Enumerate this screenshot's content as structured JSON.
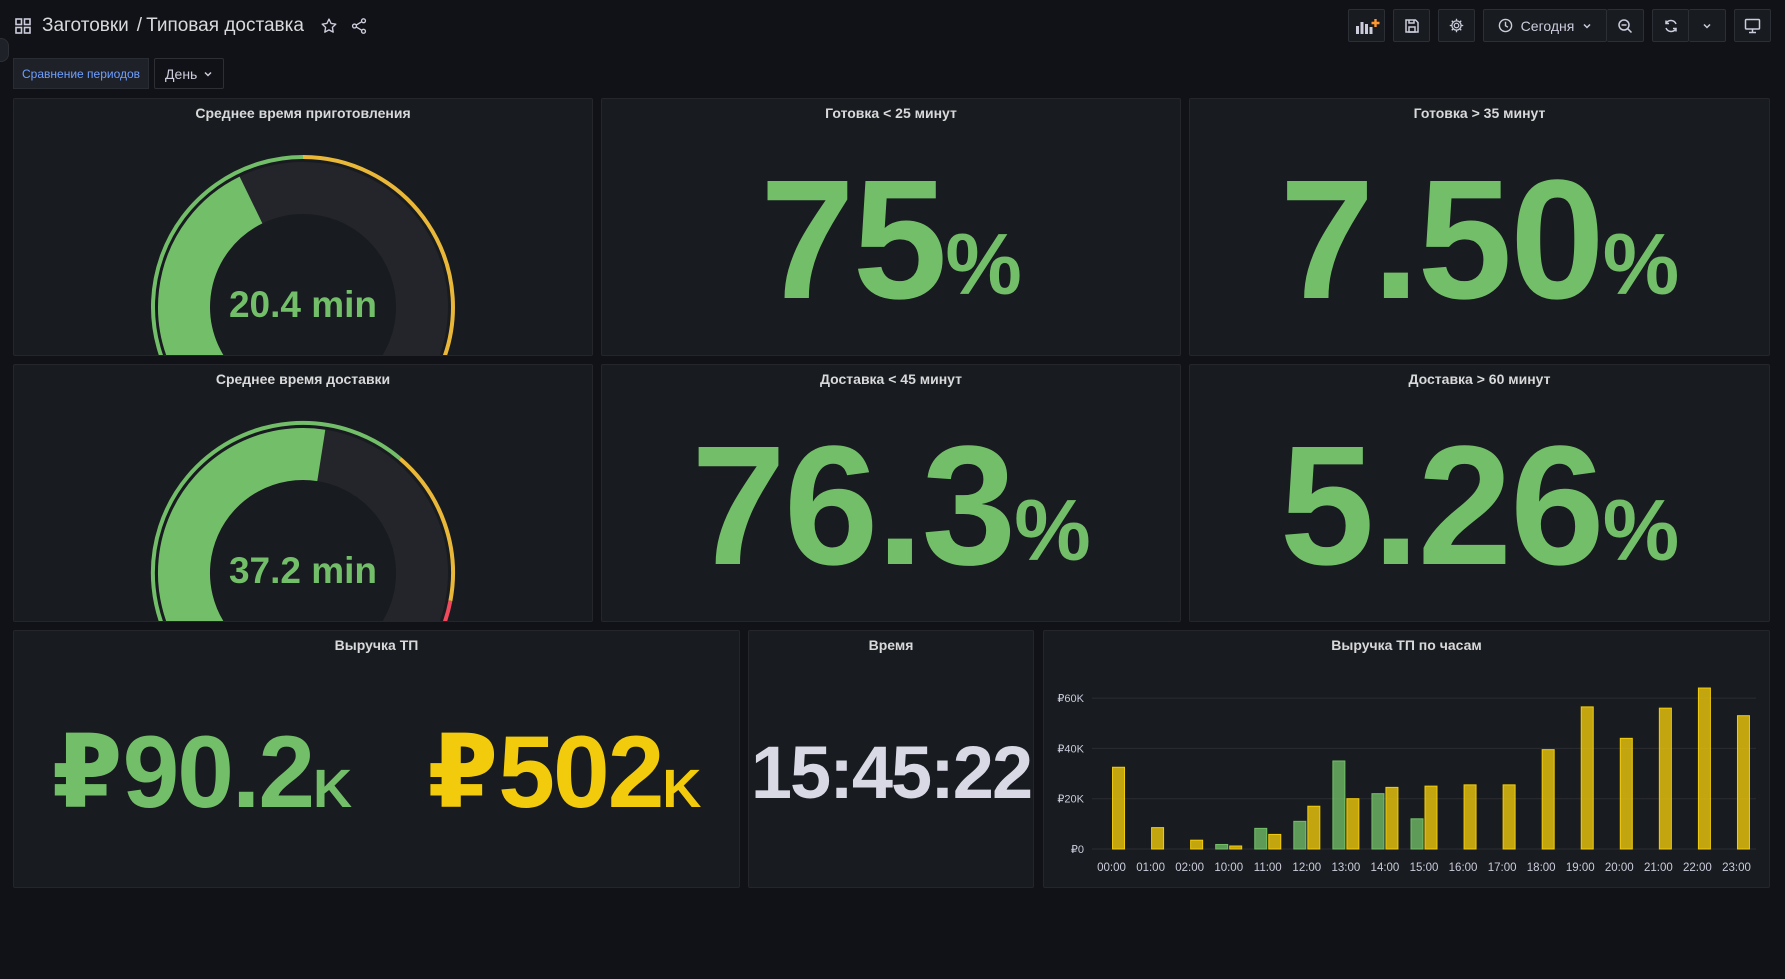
{
  "breadcrumb": {
    "folder": "Заготовки",
    "separator": "/",
    "dashboard": "Типовая доставка"
  },
  "toolbar": {
    "time_range": "Сегодня"
  },
  "variables": {
    "label": "Сравнение периодов",
    "value": "День"
  },
  "panels": {
    "prep_time": {
      "title": "Среднее время приготовления",
      "value": "20.4 min",
      "level": 20.4,
      "min": 0,
      "max": 50,
      "yellow_from": 25,
      "red_from": 45
    },
    "ready_lt25": {
      "title": "Готовка < 25 минут",
      "value": "75",
      "unit": "%"
    },
    "ready_gt35": {
      "title": "Готовка > 35 минут",
      "value": "7.50",
      "unit": "%"
    },
    "delivery_time": {
      "title": "Среднее время доставки",
      "value": "37.2 min",
      "level": 37.2,
      "min": 0,
      "max": 70,
      "yellow_from": 45,
      "red_from": 60
    },
    "delivery_lt45": {
      "title": "Доставка < 45 минут",
      "value": "76.3",
      "unit": "%"
    },
    "delivery_gt60": {
      "title": "Доставка > 60 минут",
      "value": "5.26",
      "unit": "%"
    },
    "revenue": {
      "title": "Выручка ТП",
      "current_prefix": "₽",
      "current": "90.2",
      "current_suffix": "K",
      "previous_prefix": "₽",
      "previous": "502",
      "previous_suffix": "K"
    },
    "clock": {
      "title": "Время",
      "value": "15:45:22"
    }
  },
  "colors": {
    "green": "#73bf69",
    "yellow": "#f2cc0c",
    "gauge_yellow": "#eab839",
    "red": "#f2495c",
    "track": "#24252b"
  },
  "chart_data": {
    "type": "bar",
    "title": "Выручка ТП по часам",
    "categories": [
      "00:00",
      "01:00",
      "02:00",
      "10:00",
      "11:00",
      "12:00",
      "13:00",
      "14:00",
      "15:00",
      "16:00",
      "17:00",
      "18:00",
      "19:00",
      "20:00",
      "21:00",
      "22:00",
      "23:00"
    ],
    "series": [
      {
        "values": [
          0,
          0,
          0,
          1.8,
          8.2,
          11,
          35,
          22,
          12,
          0,
          0,
          0,
          0,
          0,
          0,
          0,
          0
        ],
        "color": "#73bf69"
      },
      {
        "values": [
          32.5,
          8.5,
          3.5,
          1.2,
          5.8,
          17,
          20,
          24.5,
          25,
          25.5,
          25.5,
          39.5,
          56.5,
          44,
          56,
          64,
          53
        ],
        "color": "#f2cc0c"
      }
    ],
    "yticks": [
      {
        "value": 0,
        "label": "₽0"
      },
      {
        "value": 20,
        "label": "₽20K"
      },
      {
        "value": 40,
        "label": "₽40K"
      },
      {
        "value": 60,
        "label": "₽60K"
      }
    ],
    "ylim": [
      0,
      66
    ],
    "grid": true
  }
}
